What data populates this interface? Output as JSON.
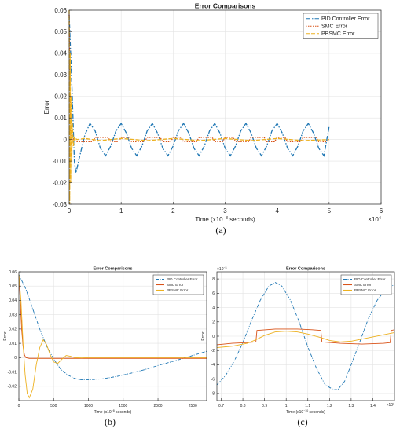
{
  "chart_data": [
    {
      "type": "line",
      "panel_label": "(a)",
      "title": "Error Comparisons",
      "xlabel": "Time (x10",
      "xlabel_exp": "−8",
      "xlabel_tail": " seconds)",
      "ylabel": "Error",
      "x_multiplier": "×10",
      "x_multiplier_exp": "4",
      "xlim": [
        0,
        6
      ],
      "ylim": [
        -0.03,
        0.06
      ],
      "xticks": [
        0,
        1,
        2,
        3,
        4,
        5,
        6
      ],
      "yticks": [
        -0.03,
        -0.02,
        -0.01,
        0,
        0.01,
        0.02,
        0.03,
        0.04,
        0.05,
        0.06
      ],
      "ytick_labels": [
        "-0.03",
        "-0.02",
        "-0.01",
        "0",
        "0.01",
        "0.02",
        "0.03",
        "0.04",
        "0.05",
        "0.06"
      ],
      "grid": true,
      "legend": "top-right",
      "series": [
        {
          "name": "PID Controller Error",
          "color": "#1f77b4",
          "dash": "6,2,1.5,2",
          "x": [
            0,
            0.06,
            0.1,
            0.13,
            0.2,
            0.3,
            0.4,
            0.5,
            0.6,
            0.7,
            0.8,
            0.9,
            1.0,
            1.1,
            1.2,
            1.3,
            1.4,
            1.5,
            1.6,
            1.7,
            1.8,
            1.9,
            2.0,
            2.1,
            2.2,
            2.3,
            2.4,
            2.5,
            2.6,
            2.7,
            2.8,
            2.9,
            3.0,
            3.1,
            3.2,
            3.3,
            3.4,
            3.5,
            3.6,
            3.7,
            3.8,
            3.9,
            4.0,
            4.1,
            4.2,
            4.3,
            4.4,
            4.5,
            4.6,
            4.7,
            4.8,
            4.9,
            5.0
          ],
          "y": [
            0.058,
            0.02,
            -0.01,
            -0.0155,
            -0.008,
            0.002,
            0.0075,
            0.004,
            -0.004,
            -0.0075,
            -0.003,
            0.004,
            0.0075,
            0.003,
            -0.004,
            -0.0075,
            -0.003,
            0.004,
            0.0075,
            0.003,
            -0.004,
            -0.0075,
            -0.003,
            0.004,
            0.0075,
            0.003,
            -0.004,
            -0.0075,
            -0.003,
            0.004,
            0.0075,
            0.003,
            -0.004,
            -0.0075,
            -0.003,
            0.004,
            0.0075,
            0.003,
            -0.004,
            -0.0075,
            -0.003,
            0.004,
            0.0075,
            0.003,
            -0.004,
            -0.0075,
            -0.003,
            0.004,
            0.0075,
            0.003,
            -0.004,
            -0.0075,
            0.006
          ]
        },
        {
          "name": "SMC Error",
          "color": "#d95319",
          "dash": "1.5,1.5",
          "x": [
            0,
            0.03,
            0.08,
            0.15,
            0.3,
            0.45,
            0.5,
            0.75,
            0.8,
            0.95,
            1.0,
            1.15,
            1.2,
            1.45,
            1.5,
            1.75,
            1.8,
            1.95,
            2.0,
            2.15,
            2.2,
            2.45,
            2.5,
            2.75,
            2.8,
            2.95,
            3.0,
            3.15,
            3.2,
            3.45,
            3.5,
            3.75,
            3.8,
            3.95,
            4.0,
            4.15,
            4.2,
            4.45,
            4.5,
            4.75,
            4.8,
            4.95,
            5.0
          ],
          "y": [
            0.058,
            0.002,
            0,
            -0.001,
            -0.001,
            -0.001,
            0.001,
            0.001,
            -0.001,
            -0.001,
            0.001,
            0.001,
            -0.001,
            -0.001,
            0.001,
            0.001,
            -0.001,
            -0.001,
            0.001,
            0.001,
            -0.001,
            -0.001,
            0.001,
            0.001,
            -0.001,
            -0.001,
            0.001,
            0.001,
            -0.001,
            -0.001,
            0.001,
            0.001,
            -0.001,
            -0.001,
            0.001,
            0.001,
            -0.001,
            -0.001,
            0.001,
            0.001,
            -0.001,
            -0.001,
            0
          ]
        },
        {
          "name": "PBSMC Error",
          "color": "#edb120",
          "dash": "5,2",
          "x": [
            0,
            0.01,
            0.02,
            0.03,
            0.04,
            0.05,
            0.06,
            0.08,
            0.1,
            0.15,
            0.3,
            0.6,
            1.0,
            1.5,
            2.0,
            2.5,
            3.0,
            3.5,
            4.0,
            4.5,
            5.0
          ],
          "y": [
            0.06,
            -0.03,
            0.04,
            -0.02,
            0.02,
            -0.01,
            0.008,
            -0.003,
            0.001,
            0,
            0.0005,
            -0.0005,
            0.0005,
            -0.0005,
            0.0005,
            -0.0005,
            0.0005,
            -0.0005,
            0.0005,
            -0.0005,
            0
          ]
        }
      ]
    },
    {
      "type": "line",
      "panel_label": "(b)",
      "title": "Error Comparisons",
      "xlabel": "Time (x10",
      "xlabel_exp": "−8",
      "xlabel_tail": " seconds)",
      "ylabel": "Error",
      "xlim": [
        0,
        2700
      ],
      "ylim": [
        -0.03,
        0.06
      ],
      "xticks": [
        0,
        500,
        1000,
        1500,
        2000,
        2500
      ],
      "yticks": [
        -0.02,
        -0.01,
        0,
        0.01,
        0.02,
        0.03,
        0.04,
        0.05,
        0.06
      ],
      "ytick_labels": [
        "-0.02",
        "-0.01",
        "0",
        "0.01",
        "0.02",
        "0.03",
        "0.04",
        "0.05",
        "0.06"
      ],
      "grid": true,
      "legend": "top-right",
      "series": [
        {
          "name": "PID Controller Error",
          "color": "#1f77b4",
          "dash": "4,1.5,1,1.5",
          "x": [
            0,
            100,
            200,
            300,
            400,
            500,
            600,
            700,
            800,
            900,
            1000,
            1200,
            1400,
            1600,
            1800,
            2000,
            2200,
            2400,
            2600,
            2700
          ],
          "y": [
            0.058,
            0.048,
            0.034,
            0.02,
            0.008,
            -0.001,
            -0.008,
            -0.012,
            -0.0145,
            -0.0155,
            -0.0155,
            -0.0148,
            -0.0132,
            -0.011,
            -0.0085,
            -0.0055,
            -0.0028,
            0,
            0.003,
            0.0045
          ]
        },
        {
          "name": "SMC Error",
          "color": "#d95319",
          "dash": "",
          "x": [
            0,
            20,
            40,
            60,
            80,
            100,
            150,
            300,
            600,
            1000,
            1500,
            2000,
            2500,
            2700
          ],
          "y": [
            0.058,
            0.04,
            0.02,
            0.008,
            0.002,
            0,
            -0.0005,
            -0.0005,
            -0.0005,
            -0.0005,
            -0.0005,
            -0.0005,
            -0.0005,
            -0.0005
          ]
        },
        {
          "name": "PBSMC Error",
          "color": "#edb120",
          "dash": "",
          "x": [
            0,
            30,
            60,
            90,
            120,
            150,
            200,
            250,
            300,
            350,
            400,
            450,
            500,
            560,
            620,
            680,
            740,
            800,
            900,
            1000,
            1500,
            2000,
            2700
          ],
          "y": [
            0.058,
            0.04,
            0.01,
            -0.012,
            -0.025,
            -0.028,
            -0.022,
            -0.005,
            0.007,
            0.0125,
            0.009,
            0.002,
            -0.003,
            -0.004,
            -0.001,
            0.0015,
            0.001,
            0,
            -0.0002,
            0,
            0,
            0,
            0
          ]
        }
      ]
    },
    {
      "type": "line",
      "panel_label": "(c)",
      "title": "Error Comparisons",
      "xlabel": "Time (x10",
      "xlabel_exp": "−10",
      "xlabel_tail": " seconds)",
      "ylabel": "Error",
      "x_multiplier": "×10",
      "x_multiplier_exp": "4",
      "y_multiplier": "×10",
      "y_multiplier_exp": "−3",
      "xlim": [
        0.68,
        1.5
      ],
      "ylim": [
        -9,
        9
      ],
      "xticks": [
        0.7,
        0.8,
        0.9,
        1,
        1.1,
        1.2,
        1.3,
        1.4
      ],
      "xtick_labels": [
        "0.7",
        "0.8",
        "0.9",
        "1",
        "1.1",
        "1.2",
        "1.3",
        "1.4"
      ],
      "yticks": [
        -8,
        -6,
        -4,
        -2,
        0,
        2,
        4,
        6,
        8
      ],
      "grid": true,
      "legend": "top-right",
      "series": [
        {
          "name": "PID Controller Error",
          "color": "#1f77b4",
          "dash": "4,1.5,1,1.5",
          "x": [
            0.68,
            0.72,
            0.76,
            0.8,
            0.84,
            0.88,
            0.92,
            0.95,
            0.98,
            1.02,
            1.06,
            1.1,
            1.14,
            1.18,
            1.22,
            1.24,
            1.27,
            1.3,
            1.34,
            1.38,
            1.42,
            1.46,
            1.5
          ],
          "y": [
            -6.8,
            -5.5,
            -3.5,
            -0.9,
            2.2,
            5.0,
            7.0,
            7.5,
            7.0,
            5.0,
            2.0,
            -1.5,
            -4.5,
            -6.8,
            -7.5,
            -7.4,
            -6.3,
            -4.0,
            -0.8,
            2.5,
            5.0,
            6.6,
            7.2
          ]
        },
        {
          "name": "SMC Error",
          "color": "#d95319",
          "dash": "",
          "x": [
            0.68,
            0.75,
            0.82,
            0.86,
            0.865,
            0.95,
            1.05,
            1.12,
            1.16,
            1.165,
            1.25,
            1.35,
            1.45,
            1.48,
            1.485,
            1.5
          ],
          "y": [
            -1.2,
            -1.0,
            -0.9,
            -0.8,
            0.8,
            1.0,
            1.0,
            0.9,
            0.8,
            -0.8,
            -1.0,
            -1.1,
            -1.0,
            -0.9,
            0.8,
            0.9
          ]
        },
        {
          "name": "PBSMC Error",
          "color": "#edb120",
          "dash": "",
          "x": [
            0.68,
            0.75,
            0.82,
            0.86,
            0.9,
            0.95,
            1.0,
            1.05,
            1.1,
            1.16,
            1.2,
            1.25,
            1.3,
            1.35,
            1.4,
            1.45,
            1.5
          ],
          "y": [
            -1.6,
            -1.4,
            -1.0,
            -0.5,
            0.1,
            0.6,
            0.7,
            0.6,
            0.3,
            -0.2,
            -0.6,
            -0.8,
            -0.7,
            -0.4,
            -0.1,
            0.2,
            0.5
          ]
        }
      ]
    }
  ]
}
